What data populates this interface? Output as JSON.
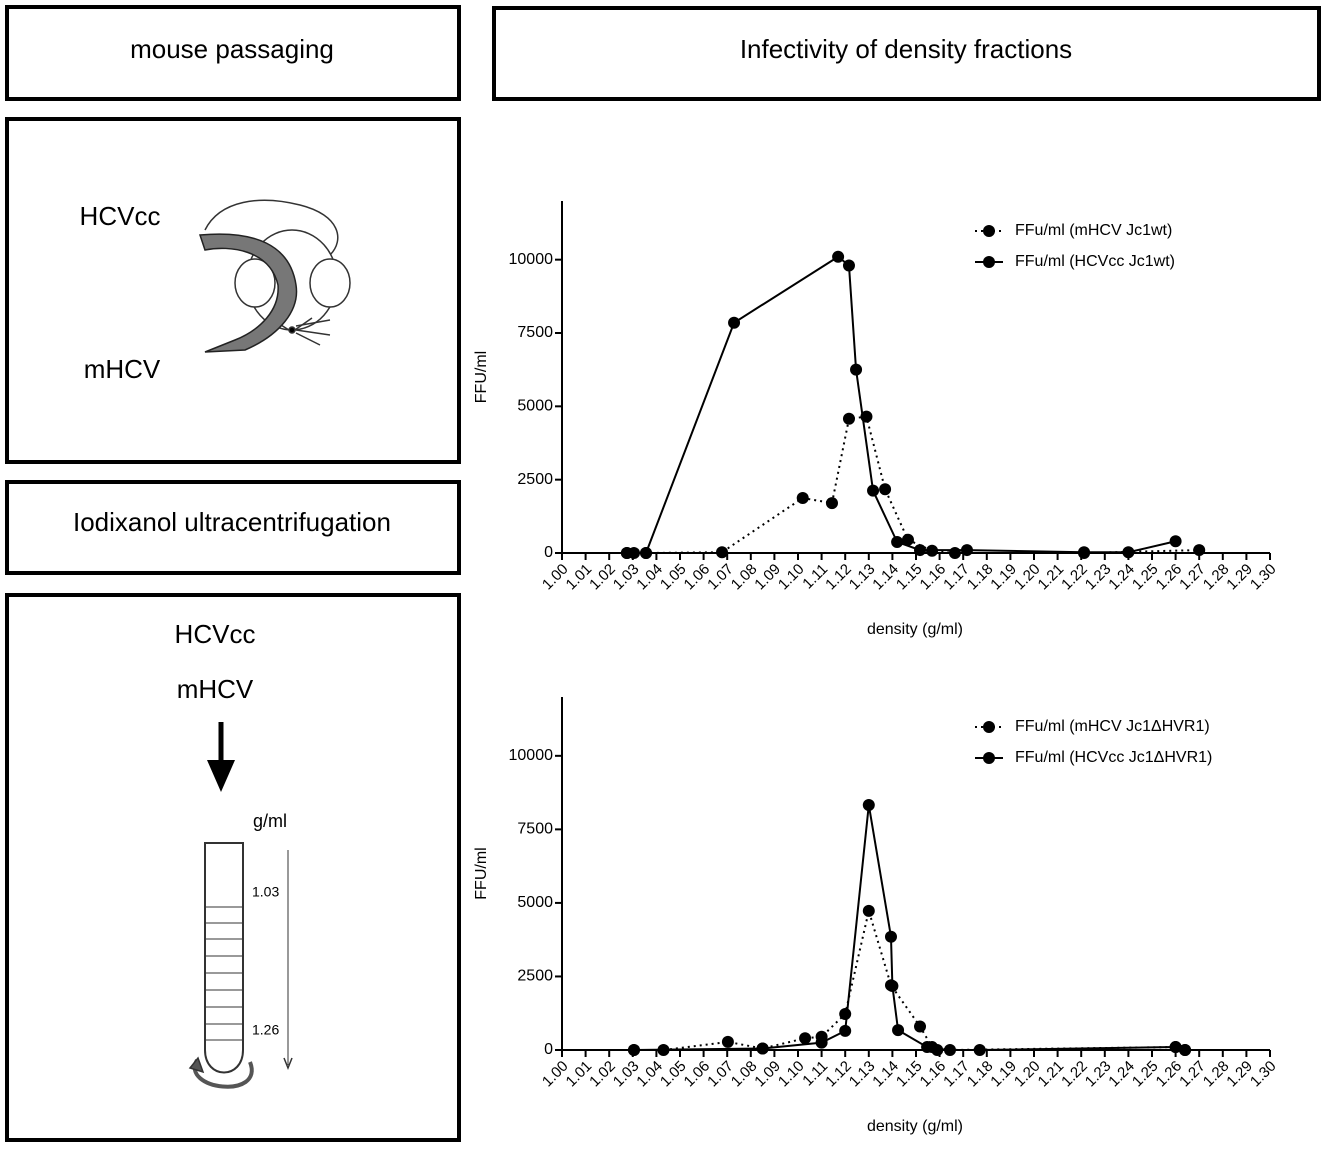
{
  "panels": {
    "mouse_title": "mouse passaging",
    "mouse_labels": [
      "HCVcc",
      "mHCV"
    ],
    "centrifuge_title": "Iodixanol ultracentrifugation",
    "gradient_labels": [
      "HCVcc",
      "mHCV"
    ],
    "tube_unit": "g/ml",
    "tube_marks": [
      "1.03",
      "1.26"
    ],
    "chart_title": "Infectivity of density fractions"
  },
  "chart_data": [
    {
      "type": "line",
      "x_label": "density (g/ml)",
      "y_label": "FFU/ml",
      "xlim": [
        1,
        1.3
      ],
      "ylim": [
        0,
        12000
      ],
      "legend": "upper right",
      "xticks": [
        {
          "value": 1,
          "label": "1.00"
        },
        1.01,
        1.02,
        1.03,
        1.04,
        1.05,
        1.06,
        1.07,
        1.08,
        1.09,
        {
          "value": 1.1,
          "label": "1.10"
        },
        1.11,
        1.12,
        1.13,
        1.14,
        1.15,
        1.16,
        1.17,
        1.18,
        1.19,
        {
          "value": 1.2,
          "label": "1.20"
        },
        1.21,
        1.22,
        1.23,
        1.24,
        1.25,
        1.26,
        1.27,
        1.28,
        1.29,
        {
          "value": 1.3,
          "label": "1.30"
        }
      ],
      "yticks": [
        0,
        2500,
        5000,
        7500,
        10000
      ],
      "series": [
        {
          "name": "FFu/ml (mHCV Jc1wt)",
          "color": "#000000",
          "line_style": "dotted",
          "x": [
            1.0275,
            1.0305,
            1.0356,
            1.0678,
            1.102,
            1.1144,
            1.1216,
            1.129,
            1.1369,
            1.1466,
            1.1568,
            1.1665,
            1.2212,
            1.27
          ],
          "values": [
            0,
            0,
            0,
            25,
            1875,
            1700,
            4575,
            4650,
            2175,
            450,
            75,
            0,
            0,
            100
          ]
        },
        {
          "name": "FFu/ml (HCVcc Jc1wt)",
          "color": "#000000",
          "line_style": "solid",
          "x": [
            1.0275,
            1.0356,
            1.0729,
            1.117,
            1.1216,
            1.1246,
            1.1318,
            1.142,
            1.1517,
            1.1716,
            1.2212,
            1.24,
            1.26
          ],
          "values": [
            0,
            0,
            7850,
            10100,
            9800,
            6250,
            2125,
            375,
            100,
            100,
            25,
            25,
            400
          ]
        }
      ]
    },
    {
      "type": "line",
      "x_label": "density (g/ml)",
      "y_label": "FFU/ml",
      "xlim": [
        1,
        1.3
      ],
      "ylim": [
        0,
        12000
      ],
      "legend": "upper right",
      "xticks": [
        {
          "value": 1,
          "label": "1.00"
        },
        1.01,
        1.02,
        1.03,
        1.04,
        1.05,
        1.06,
        1.07,
        1.08,
        1.09,
        {
          "value": 1.1,
          "label": "1.10"
        },
        1.11,
        1.12,
        1.13,
        1.14,
        1.15,
        1.16,
        1.17,
        1.18,
        1.19,
        {
          "value": 1.2,
          "label": "1.20"
        },
        1.21,
        1.22,
        1.23,
        1.24,
        1.25,
        1.26,
        1.27,
        1.28,
        1.29,
        {
          "value": 1.3,
          "label": "1.30"
        }
      ],
      "yticks": [
        0,
        2500,
        5000,
        7500,
        10000
      ],
      "series": [
        {
          "name": "FFu/ml (mHCV Jc1ΔHVR1)",
          "color": "#000000",
          "line_style": "dotted",
          "x": [
            1.0305,
            1.043,
            1.0703,
            1.085,
            1.103,
            1.11,
            1.12,
            1.13,
            1.1394,
            1.1517,
            1.1568,
            1.1644,
            1.26,
            1.264
          ],
          "values": [
            0,
            0,
            275,
            50,
            400,
            450,
            1225,
            4730,
            2200,
            800,
            100,
            0,
            100,
            0
          ]
        },
        {
          "name": "FFu/ml (HCVcc Jc1ΔHVR1)",
          "color": "#000000",
          "line_style": "solid",
          "x": [
            1.0305,
            1.085,
            1.11,
            1.12,
            1.13,
            1.1394,
            1.14,
            1.1424,
            1.1547,
            1.159,
            1.177,
            1.26,
            1.264
          ],
          "values": [
            0,
            50,
            250,
            650,
            8330,
            3850,
            2175,
            675,
            100,
            0,
            0,
            100,
            0
          ]
        }
      ]
    }
  ]
}
